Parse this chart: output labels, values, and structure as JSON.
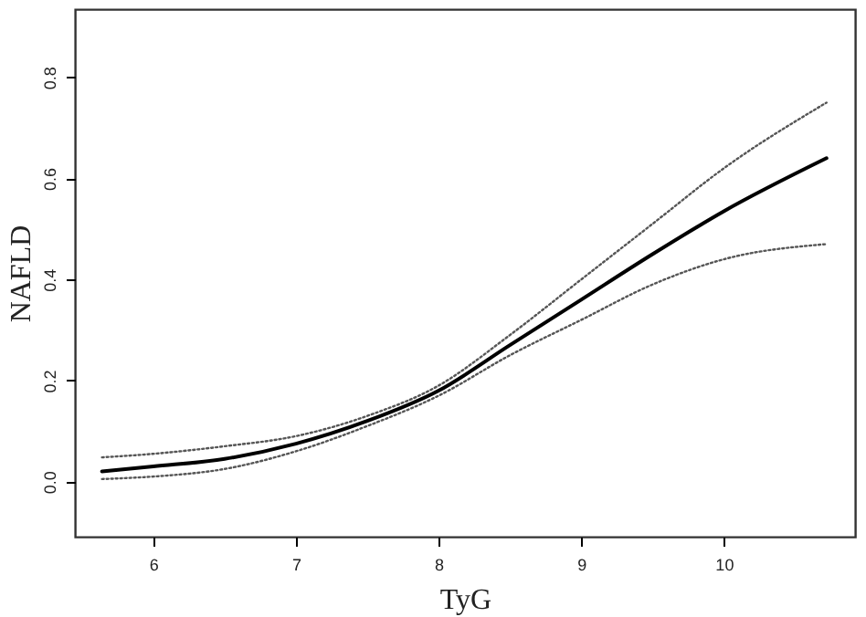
{
  "chart_data": {
    "type": "line",
    "xlabel": "TyG",
    "ylabel": "NAFLD",
    "xlim": [
      5.45,
      10.92
    ],
    "xticks": [
      6,
      7,
      8,
      9,
      10
    ],
    "ylim": [
      -0.109,
      0.935
    ],
    "yticks": [
      {
        "value": 0,
        "label": "0.0"
      },
      0.2,
      0.4,
      0.6,
      0.8
    ],
    "grid": false,
    "series": [
      {
        "color": "#000000",
        "line_style": "solid",
        "x": [
          5.64,
          6,
          6.5,
          7,
          7.5,
          8,
          8.5,
          9,
          9.5,
          10,
          10.72
        ],
        "values": [
          0.02,
          0.03,
          0.045,
          0.075,
          0.12,
          0.18,
          0.27,
          0.36,
          0.45,
          0.535,
          0.64
        ]
      },
      {
        "color": "#555555",
        "line_style": "dotted",
        "x": [
          5.64,
          6,
          6.5,
          7,
          7.5,
          8,
          8.5,
          9,
          9.5,
          10,
          10.72
        ],
        "values": [
          0.048,
          0.055,
          0.07,
          0.09,
          0.13,
          0.19,
          0.29,
          0.4,
          0.51,
          0.62,
          0.75
        ]
      },
      {
        "color": "#555555",
        "line_style": "dotted",
        "x": [
          5.64,
          6,
          6.5,
          7,
          7.5,
          8,
          8.5,
          9,
          9.5,
          10,
          10.72
        ],
        "values": [
          0.005,
          0.01,
          0.025,
          0.06,
          0.11,
          0.17,
          0.25,
          0.32,
          0.39,
          0.44,
          0.47
        ]
      }
    ]
  }
}
